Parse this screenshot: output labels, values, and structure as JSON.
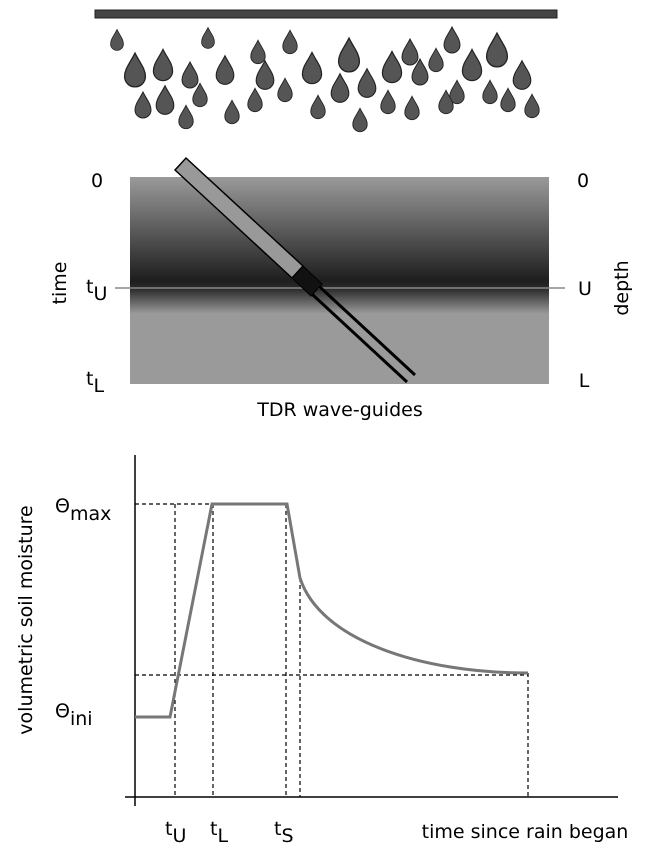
{
  "top_diagram": {
    "left_top": "0",
    "right_top": "0",
    "left_upper": {
      "base": "t",
      "sub": "U"
    },
    "right_upper": "U",
    "left_lower": {
      "base": "t",
      "sub": "L"
    },
    "right_lower": "L",
    "left_axis": "time",
    "right_axis": "depth",
    "caption": "TDR wave-guides"
  },
  "bottom_diagram": {
    "y_axis_title": "volumetric soil moisture",
    "theta_max": {
      "base": "Θ",
      "sub": "max"
    },
    "theta_ini": {
      "base": "Θ",
      "sub": "ini"
    },
    "x_labels": [
      {
        "base": "t",
        "sub": "U"
      },
      {
        "base": "t",
        "sub": "L"
      },
      {
        "base": "t",
        "sub": "S"
      }
    ],
    "x_axis_title": "time since rain began"
  }
}
